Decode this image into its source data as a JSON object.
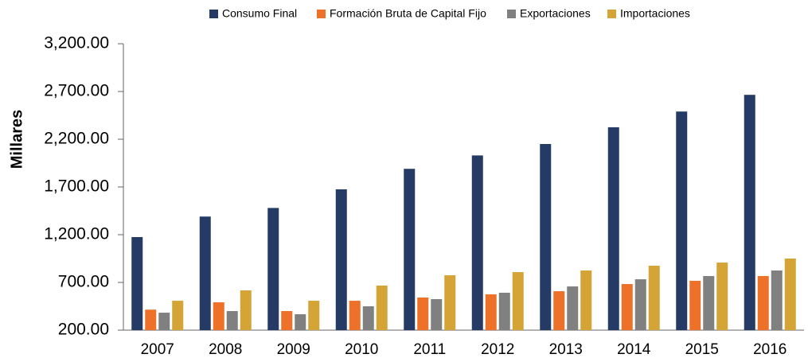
{
  "chart_data": {
    "type": "bar",
    "y_label": "Millares",
    "categories": [
      "2007",
      "2008",
      "2009",
      "2010",
      "2011",
      "2012",
      "2013",
      "2014",
      "2015",
      "2016"
    ],
    "series": [
      {
        "name": "Consumo Final",
        "color": "#253a64",
        "values": [
          1175,
          1390,
          1480,
          1675,
          1890,
          2030,
          2150,
          2325,
          2490,
          2665
        ]
      },
      {
        "name": "Formación Bruta de Capital Fijo",
        "color": "#ed7128",
        "values": [
          415,
          492,
          400,
          508,
          542,
          575,
          608,
          683,
          717,
          767
        ]
      },
      {
        "name": "Exportaciones",
        "color": "#808080",
        "values": [
          383,
          400,
          367,
          450,
          525,
          592,
          658,
          733,
          767,
          825
        ]
      },
      {
        "name": "Importaciones",
        "color": "#d4a437",
        "values": [
          508,
          617,
          508,
          667,
          775,
          808,
          825,
          875,
          908,
          950
        ]
      }
    ],
    "ylim": [
      200,
      3200
    ],
    "yticks": [
      {
        "value": 200,
        "label": "200.00"
      },
      {
        "value": 700,
        "label": "700.00"
      },
      {
        "value": 1200,
        "label": "1,200.00"
      },
      {
        "value": 1700,
        "label": "1,700.00"
      },
      {
        "value": 2200,
        "label": "2,200.00"
      },
      {
        "value": 2700,
        "label": "2,700.00"
      },
      {
        "value": 3200,
        "label": "3,200.00"
      }
    ],
    "legend": "top"
  }
}
